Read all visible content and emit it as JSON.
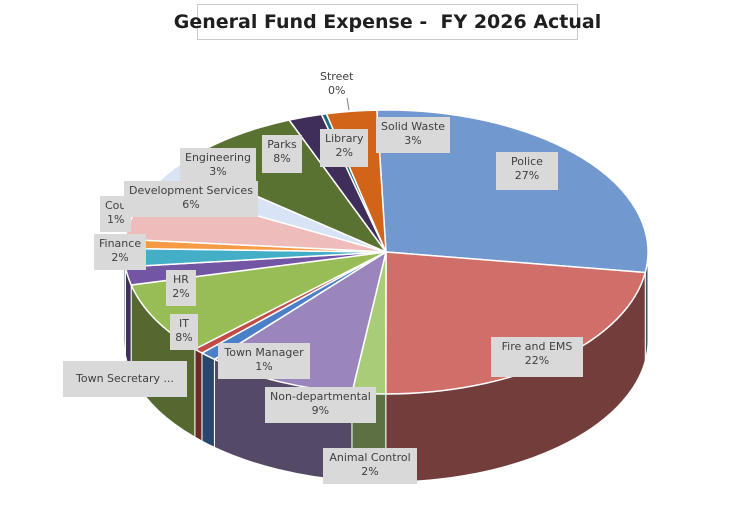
{
  "chart_data": {
    "type": "pie",
    "title": "General Fund Expense -  FY 2026 Actual",
    "slices": [
      {
        "name": "Police",
        "label": "27%",
        "value": 27,
        "color": "#7198cf"
      },
      {
        "name": "Fire and EMS",
        "label": "22%",
        "value": 22,
        "color": "#d06e6a"
      },
      {
        "name": "Animal Control",
        "label": "2%",
        "value": 2,
        "color": "#a9cc79"
      },
      {
        "name": "Non-departmental",
        "label": "9%",
        "value": 9,
        "color": "#9a85bd"
      },
      {
        "name": "Town Manager",
        "label": "1%",
        "value": 1,
        "color": "#4b7fc8"
      },
      {
        "name": "Town Secretary ...",
        "label": "",
        "value": 0.6,
        "color": "#c24a47"
      },
      {
        "name": "IT",
        "label": "8%",
        "value": 8,
        "color": "#98bd57"
      },
      {
        "name": "HR",
        "label": "2%",
        "value": 2,
        "color": "#7356a3"
      },
      {
        "name": "Finance",
        "label": "2%",
        "value": 2,
        "color": "#45aec7"
      },
      {
        "name": "Council",
        "display_name": "Cou",
        "label": "1%",
        "value": 1,
        "color": "#f79a45"
      },
      {
        "name": "Development Services",
        "label": "6%",
        "value": 6,
        "color": "#efbcbc"
      },
      {
        "name": "Engineering",
        "label": "3%",
        "value": 3,
        "color": "#d8e4f5"
      },
      {
        "name": "Parks",
        "label": "8%",
        "value": 8,
        "color": "#5a7231"
      },
      {
        "name": "Library",
        "label": "2%",
        "value": 2,
        "color": "#3f2d5a"
      },
      {
        "name": "Street",
        "label": "0%",
        "value": 0.3,
        "color": "#1c6d82"
      },
      {
        "name": "Solid Waste",
        "label": "3%",
        "value": 3,
        "color": "#d2641a"
      }
    ]
  }
}
